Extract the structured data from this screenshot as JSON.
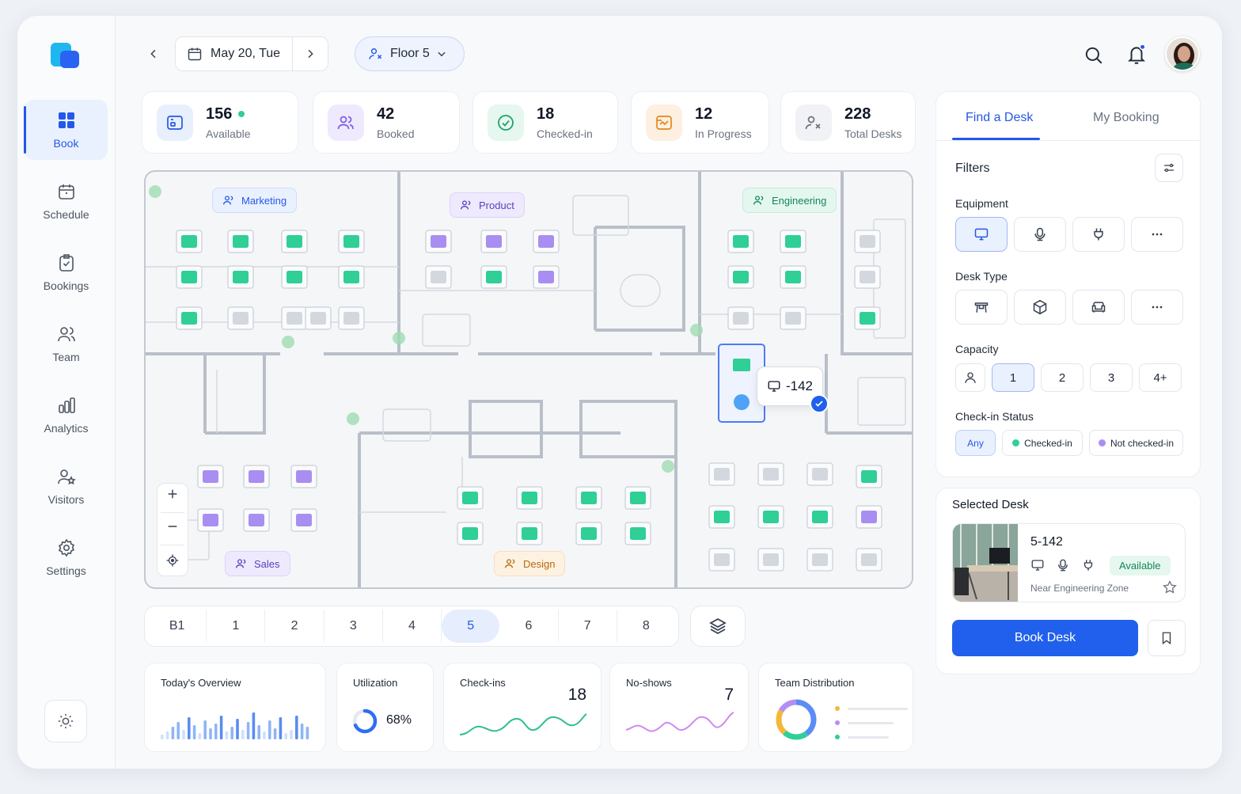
{
  "header": {
    "date": "May 20, Tue",
    "floor": "Floor 5",
    "prev_icon": "chevron-left-icon",
    "next_icon": "chevron-right-icon"
  },
  "sidebar": {
    "items": [
      {
        "label": "Book",
        "icon": "grid-icon"
      },
      {
        "label": "Schedule",
        "icon": "calendar-icon"
      },
      {
        "label": "Bookings",
        "icon": "clipboard-check-icon"
      },
      {
        "label": "Team",
        "icon": "users-icon"
      },
      {
        "label": "Analytics",
        "icon": "bar-chart-icon"
      },
      {
        "label": "Visitors",
        "icon": "user-star-icon"
      },
      {
        "label": "Settings",
        "icon": "gear-icon"
      }
    ],
    "active": "Book"
  },
  "stats": [
    {
      "value": "156",
      "label": "Available"
    },
    {
      "value": "42",
      "label": "Booked"
    },
    {
      "value": "18",
      "label": "Checked-in"
    },
    {
      "value": "12",
      "label": "In Progress"
    },
    {
      "value": "228",
      "label": "Total Desks"
    }
  ],
  "map": {
    "zones": [
      "Marketing",
      "Product",
      "Engineering",
      "Sales",
      "Design"
    ],
    "tooltip": "-142"
  },
  "floors": {
    "items": [
      "B1",
      "1",
      "2",
      "3",
      "4",
      "5",
      "6",
      "7",
      "8"
    ],
    "active": "5"
  },
  "bottom": {
    "overview_title": "Today's Overview",
    "utilization_title": "Utilization",
    "utilization_value": "68%",
    "utilization_fraction": 0.68,
    "checkins_title": "Check-ins",
    "checkins_value": "18",
    "noshows_title": "No-shows",
    "noshows_value": "7",
    "team_title": "Team Distribution"
  },
  "panel": {
    "tab_find": "Find a Desk",
    "tab_booking": "My Booking",
    "filters": "Filters",
    "equipment": "Equipment",
    "desk_type": "Desk Type",
    "capacity": "Capacity",
    "capacity_options": [
      "1",
      "2",
      "3",
      "4+"
    ],
    "checkin_status": "Check-in Status",
    "status_any": "Any",
    "status_checked": "Checked-in",
    "status_not": "Not checked-in"
  },
  "selected": {
    "title": "Selected Desk",
    "desk_id": "5-142",
    "badge": "Available",
    "location": "Near Engineering Zone",
    "book_label": "Book Desk"
  },
  "colors": {
    "accent": "#2160ec",
    "green": "#2fcf96",
    "purple": "#a98ef2",
    "orange": "#f5a524"
  }
}
